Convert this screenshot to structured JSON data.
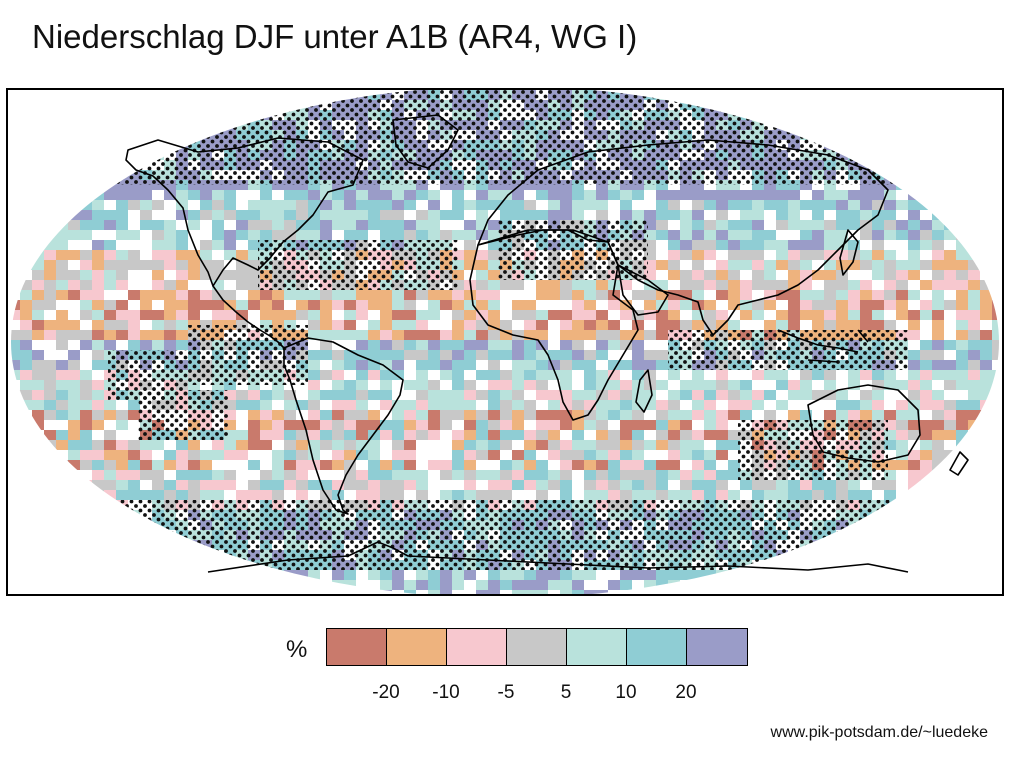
{
  "title": "Niederschlag DJF unter A1B (AR4, WG I)",
  "legend": {
    "unit": "%",
    "classes": [
      {
        "color": "#c97a6c"
      },
      {
        "color": "#eeb37e"
      },
      {
        "color": "#f7c8cf"
      },
      {
        "color": "#c8c8c8"
      },
      {
        "color": "#b9e2dc"
      },
      {
        "color": "#8fcdd4"
      },
      {
        "color": "#9a9cc8"
      }
    ],
    "ticks": [
      "-20",
      "-10",
      "-5",
      "5",
      "10",
      "20"
    ]
  },
  "colors": {
    "land_outline": "#000000",
    "stipple": "#111111",
    "background": "#ffffff"
  },
  "credit": "www.pik-potsdam.de/~luedeke"
}
